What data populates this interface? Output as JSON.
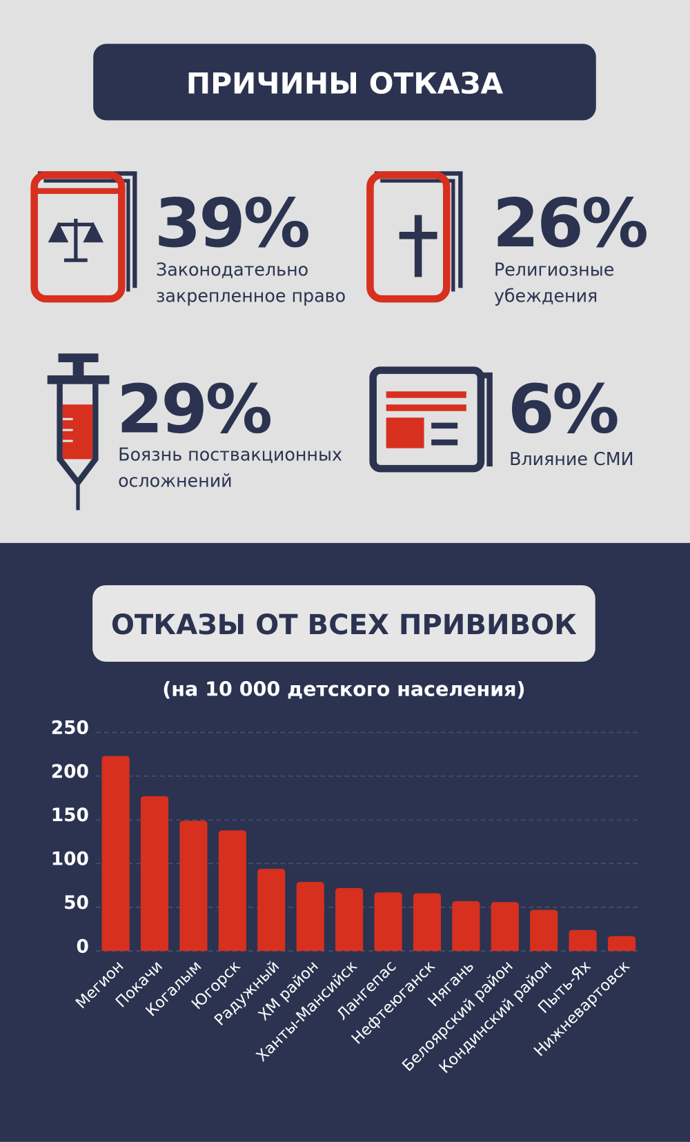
{
  "header": {
    "title": "ПРИЧИНЫ ОТКАЗА"
  },
  "reasons": [
    {
      "value": "39%",
      "lines": [
        "Законодательно",
        "закрепленное право"
      ]
    },
    {
      "value": "26%",
      "lines": [
        "Религиозные",
        "убеждения"
      ]
    },
    {
      "value": "29%",
      "lines": [
        "Боязнь поствакционных",
        "осложнений"
      ]
    },
    {
      "value": "6%",
      "lines": [
        "Влияние СМИ"
      ]
    }
  ],
  "chart_data": {
    "type": "bar",
    "title": "ОТКАЗЫ ОТ ВСЕХ ПРИВИВОК",
    "subtitle": "(на 10 000 детского населения)",
    "categories": [
      "Мегион",
      "Покачи",
      "Когалым",
      "Югорск",
      "Радужный",
      "ХМ район",
      "Ханты-Мансийск",
      "Лангепас",
      "Нефтеюганск",
      "Нягань",
      "Белоярский район",
      "Кондинский район",
      "Пыть-Ях",
      "Нижневартовск"
    ],
    "values": [
      223,
      177,
      149,
      138,
      94,
      79,
      72,
      67,
      66,
      57,
      56,
      47,
      24,
      17
    ],
    "color": "#d7301e",
    "ylim": [
      0,
      250
    ],
    "yticks": [
      0,
      50,
      100,
      150,
      200,
      250
    ],
    "grid": true
  }
}
